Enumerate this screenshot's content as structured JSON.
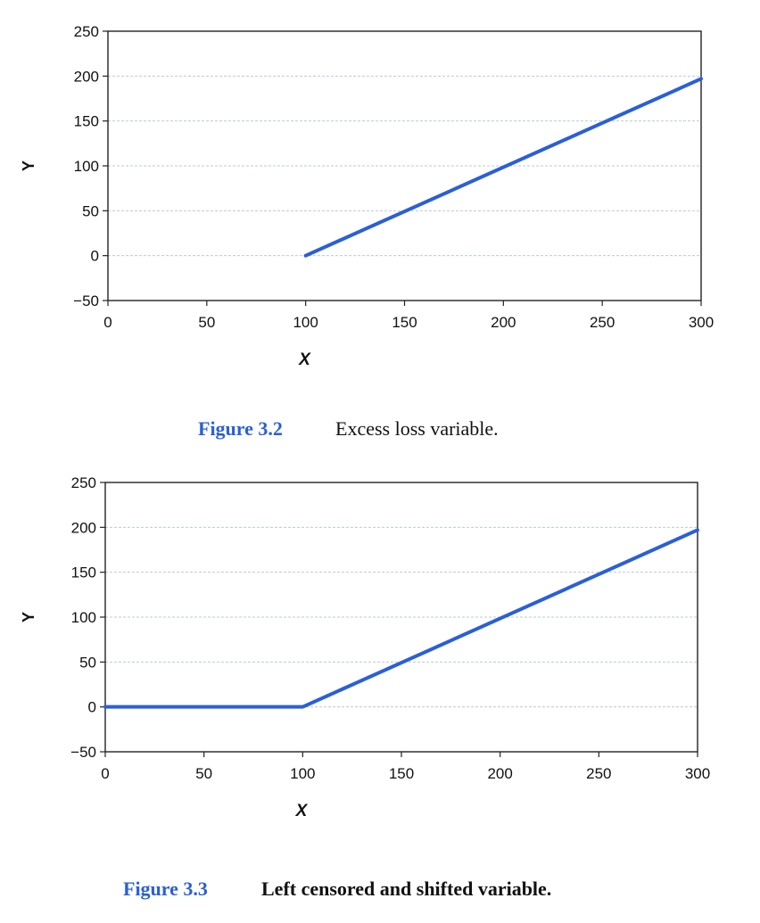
{
  "chart_data": [
    {
      "type": "line",
      "caption_number": "Figure 3.2",
      "caption_text": "Excess loss variable.",
      "xlabel": "X",
      "ylabel": "Y",
      "xlim": [
        0,
        300
      ],
      "ylim": [
        -50,
        250
      ],
      "x_ticks": [
        "0",
        "50",
        "100",
        "150",
        "200",
        "250",
        "300"
      ],
      "y_ticks": [
        "250",
        "200",
        "150",
        "100",
        "50",
        "0",
        "−50"
      ],
      "grid": true,
      "line_color": "#2a5fd8",
      "series": [
        {
          "x": [
            100,
            300
          ],
          "values": [
            0,
            197
          ]
        }
      ]
    },
    {
      "type": "line",
      "caption_number": "Figure 3.3",
      "caption_text": "Left censored and shifted variable.",
      "xlabel": "X",
      "ylabel": "Y",
      "xlim": [
        0,
        300
      ],
      "ylim": [
        -50,
        250
      ],
      "x_ticks": [
        "0",
        "50",
        "100",
        "150",
        "200",
        "250",
        "300"
      ],
      "y_ticks": [
        "250",
        "200",
        "150",
        "100",
        "50",
        "0",
        "−50"
      ],
      "grid": true,
      "line_color": "#2a5fd8",
      "series": [
        {
          "x": [
            0,
            100,
            300
          ],
          "values": [
            0,
            0,
            197
          ]
        }
      ]
    }
  ]
}
